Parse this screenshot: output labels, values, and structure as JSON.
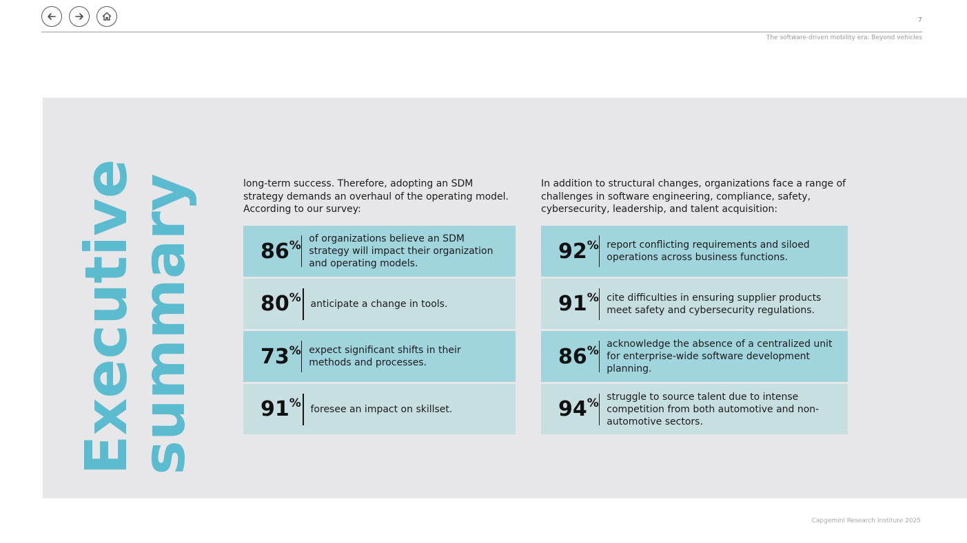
{
  "nav": {
    "back": "arrow-left-icon",
    "forward": "arrow-right-icon",
    "home": "home-icon"
  },
  "header": {
    "page_number": "7",
    "running_head": "The software-driven mobility era: Beyond vehicles"
  },
  "title": {
    "line1": "Executive",
    "line2": "summary"
  },
  "left": {
    "intro": "long-term success. Therefore, adopting an SDM strategy demands an overhaul of the operating model. According to our survey:",
    "stats": [
      {
        "value": "86",
        "unit": "%",
        "text": "of organizations believe an SDM strategy will impact their organization and operating models."
      },
      {
        "value": "80",
        "unit": "%",
        "text": "anticipate a change in tools."
      },
      {
        "value": "73",
        "unit": "%",
        "text": "expect significant shifts in their methods and processes."
      },
      {
        "value": "91",
        "unit": "%",
        "text": "foresee an impact on skillset."
      }
    ]
  },
  "right": {
    "intro": "In addition to structural changes, organizations face a range of challenges in software engineering, compliance, safety, cybersecurity, leadership, and talent acquisition:",
    "stats": [
      {
        "value": "92",
        "unit": "%",
        "text": "report conflicting requirements and siloed operations across business functions."
      },
      {
        "value": "91",
        "unit": "%",
        "text": "cite difficulties in ensuring supplier products meet safety and cybersecurity regulations."
      },
      {
        "value": "86",
        "unit": "%",
        "text": "acknowledge the absence of a centralized unit for enterprise-wide software development planning."
      },
      {
        "value": "94",
        "unit": "%",
        "text": "struggle to source talent due to intense competition from both automotive and non-automotive sectors."
      }
    ]
  },
  "footer": {
    "text": "Capgemini Research Institute 2025"
  },
  "colors": {
    "accent": "#5bbccf",
    "row_dark": "#a1d5de",
    "row_light": "#c8dfe1",
    "panel": "#e7e6e9"
  }
}
